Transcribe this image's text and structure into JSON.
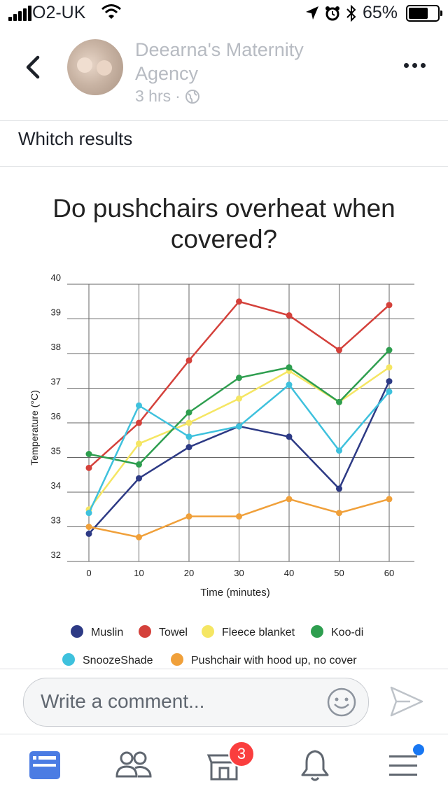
{
  "status_bar": {
    "carrier": "O2-UK",
    "battery": "65%"
  },
  "post": {
    "page_name": "Deearna's Maternity Agency",
    "time": "3 hrs",
    "separator": "·",
    "text": "Whitch results"
  },
  "comment": {
    "placeholder": "Write a comment..."
  },
  "tabs": {
    "marketplace_badge": "3"
  },
  "chart_data": {
    "type": "line",
    "title": "Do pushchairs overheat when covered?",
    "xlabel": "Time (minutes)",
    "ylabel": "Temperature (°C)",
    "x": [
      0,
      10,
      20,
      30,
      40,
      50,
      60
    ],
    "xlim": [
      0,
      60
    ],
    "ylim": [
      32,
      40
    ],
    "yticks": [
      32,
      33,
      34,
      35,
      36,
      37,
      38,
      39,
      40
    ],
    "grid": true,
    "legend_position": "bottom",
    "series": [
      {
        "name": "Muslin",
        "color": "#2d3a85",
        "values": [
          32.8,
          34.4,
          35.3,
          35.9,
          35.6,
          34.1,
          37.2
        ]
      },
      {
        "name": "Towel",
        "color": "#d4413b",
        "values": [
          34.7,
          36.0,
          37.8,
          39.5,
          39.1,
          38.1,
          39.4
        ]
      },
      {
        "name": "Fleece blanket",
        "color": "#f5e663",
        "values": [
          33.5,
          35.4,
          36.0,
          36.7,
          37.5,
          36.6,
          37.6
        ]
      },
      {
        "name": "Koo-di",
        "color": "#2e9e4f",
        "values": [
          35.1,
          34.8,
          36.3,
          37.3,
          37.6,
          36.6,
          38.1
        ]
      },
      {
        "name": "SnoozeShade",
        "color": "#3ec1dd",
        "values": [
          33.4,
          36.5,
          35.6,
          35.9,
          37.1,
          35.2,
          36.9
        ]
      },
      {
        "name": "Pushchair with hood up, no cover",
        "color": "#f0a03a",
        "values": [
          33.0,
          32.7,
          33.3,
          33.3,
          33.8,
          33.4,
          33.8
        ]
      }
    ]
  }
}
